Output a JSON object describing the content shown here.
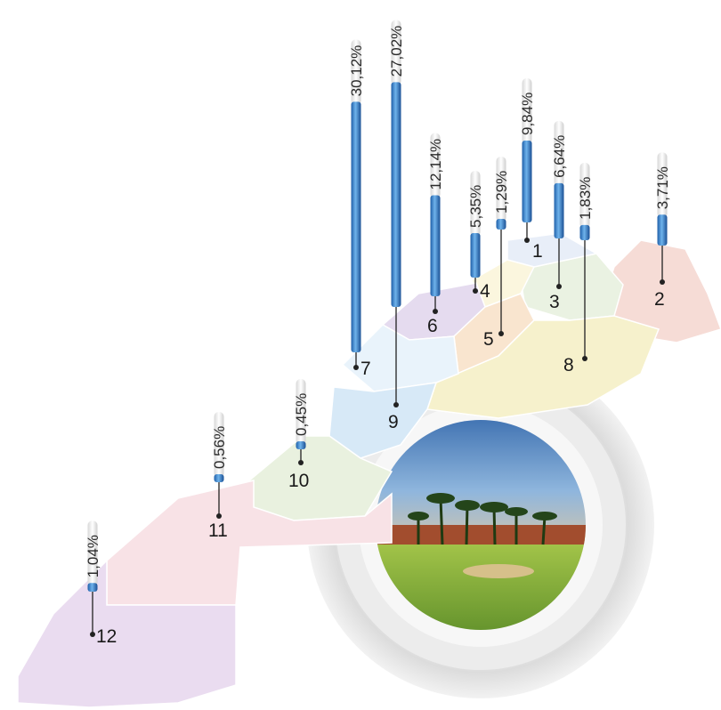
{
  "chart_data": {
    "type": "bar",
    "categories": [
      "1",
      "2",
      "3",
      "4",
      "5",
      "6",
      "7",
      "8",
      "9",
      "10",
      "11",
      "12"
    ],
    "values": [
      9.84,
      3.71,
      6.64,
      5.35,
      1.29,
      12.14,
      30.12,
      1.83,
      27.02,
      0.45,
      0.56,
      1.04
    ],
    "value_labels": [
      "9,84%",
      "3,71%",
      "6,64%",
      "5,35%",
      "1,29%",
      "12,14%",
      "30,12%",
      "1,83%",
      "27,02%",
      "0,45%",
      "0,56%",
      "1,04%"
    ],
    "unit": "%"
  },
  "colors": {
    "bar_dark": "#1f5fa8",
    "bar_light": "#6fb3ec",
    "ring": "#e3e3e3",
    "sky": "#3a6fb3",
    "grass": "#8bbd3c"
  }
}
